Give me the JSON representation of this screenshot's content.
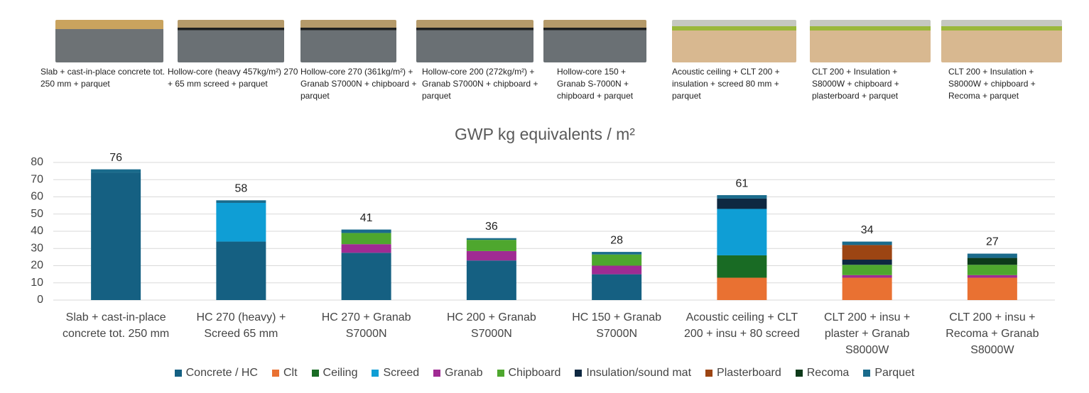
{
  "products": [
    {
      "caption": "Slab + cast-in-place concrete tot. 250 mm + parquet"
    },
    {
      "caption": "Hollow-core (heavy 457kg/m²) 270 + 65 mm screed + parquet"
    },
    {
      "caption": "Hollow-core 270 (361kg/m²) + Granab S7000N + chipboard + parquet"
    },
    {
      "caption": "Hollow-core 200 (272kg/m²) + Granab S7000N + chipboard + parquet"
    },
    {
      "caption": "Hollow-core 150 + Granab S-7000N + chipboard +  parquet"
    },
    {
      "caption": "Acoustic ceiling + CLT 200 + insulation + screed 80 mm + parquet"
    },
    {
      "caption": "CLT 200 + Insulation + S8000W + chipboard + plasterboard + parquet"
    },
    {
      "caption": "CLT 200 + Insulation + S8000W + chipboard + Recoma + parquet"
    }
  ],
  "chart_data": {
    "type": "bar",
    "stacked": true,
    "title": "GWP kg equivalents / m²",
    "categories": [
      "Slab + cast-in-place concrete tot. 250 mm",
      "HC 270 (heavy) + Screed 65 mm",
      "HC 270 + Granab S7000N",
      "HC 200 + Granab S7000N",
      "HC 150 + Granab S7000N",
      "Acoustic ceiling + CLT 200 + insu + 80 screed",
      "CLT 200 + insu + plaster + Granab S8000W",
      "CLT 200 + insu + Recoma + Granab S8000W"
    ],
    "series": [
      {
        "name": "Concrete / HC",
        "color": "#156082",
        "values": [
          74,
          34,
          27.5,
          23,
          15,
          null,
          null,
          null
        ]
      },
      {
        "name": "Clt",
        "color": "#e97132",
        "values": [
          null,
          null,
          null,
          null,
          null,
          13,
          13,
          13
        ]
      },
      {
        "name": "Ceiling",
        "color": "#196b24",
        "values": [
          null,
          null,
          null,
          null,
          null,
          13,
          null,
          null
        ]
      },
      {
        "name": "Screed",
        "color": "#0f9ed5",
        "values": [
          null,
          22.5,
          null,
          null,
          null,
          27,
          null,
          null
        ]
      },
      {
        "name": "Granab",
        "color": "#a02b93",
        "values": [
          null,
          null,
          5,
          5.5,
          5,
          null,
          1.5,
          1.5
        ]
      },
      {
        "name": "Chipboard",
        "color": "#4ea72e",
        "values": [
          null,
          null,
          6.5,
          6.5,
          6.5,
          null,
          6,
          6
        ]
      },
      {
        "name": "Insulation/sound mat",
        "color": "#0e2841",
        "values": [
          null,
          null,
          null,
          null,
          null,
          6,
          3,
          null
        ]
      },
      {
        "name": "Plasterboard",
        "color": "#9c4513",
        "values": [
          null,
          null,
          null,
          null,
          null,
          null,
          8.5,
          null
        ]
      },
      {
        "name": "Recoma",
        "color": "#0d3a1a",
        "values": [
          null,
          null,
          null,
          null,
          null,
          null,
          null,
          4
        ]
      },
      {
        "name": "Parquet",
        "color": "#1a6b8c",
        "values": [
          2,
          1.5,
          2,
          1,
          1.5,
          2,
          2,
          2.5
        ]
      }
    ],
    "totals": [
      76,
      58,
      41,
      36,
      28,
      61,
      34,
      27
    ],
    "ylim": [
      0,
      80
    ],
    "yticks": [
      0,
      10,
      20,
      30,
      40,
      50,
      60,
      70,
      80
    ],
    "grid": true,
    "legend": "bottom"
  }
}
